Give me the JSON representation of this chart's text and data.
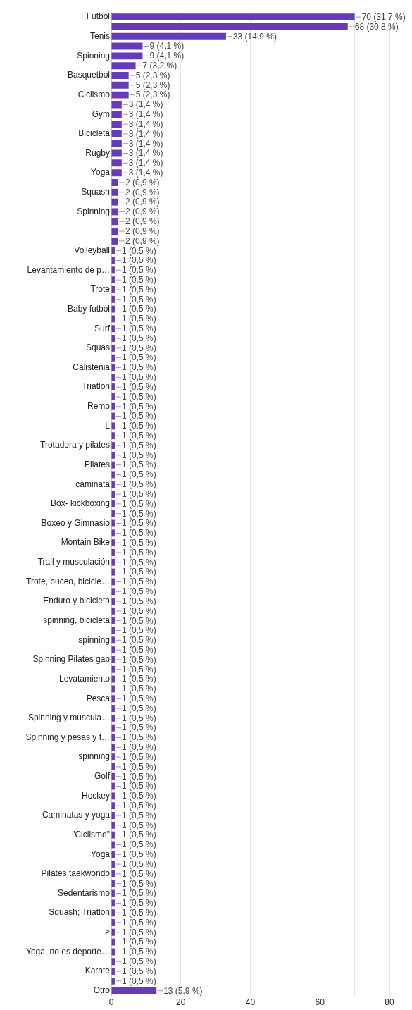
{
  "chart_data": {
    "type": "bar",
    "orientation": "horizontal",
    "categories": [
      "Futbol",
      null,
      "Tenis",
      null,
      "Spinning",
      null,
      "Basquetbol",
      null,
      "Ciclismo",
      null,
      "Gym",
      null,
      "Bicicleta",
      null,
      "Rugby",
      null,
      "Yoga",
      null,
      "Squash",
      null,
      "Spinning",
      null,
      null,
      null,
      "Volleyball",
      null,
      "Levantamiento de p…",
      null,
      "Trote",
      null,
      "Baby futbol",
      null,
      "Surf",
      null,
      "Squas",
      null,
      "Calistenia",
      null,
      "Triatlon",
      null,
      "Remo",
      null,
      "L",
      null,
      "Trotadora y pilates",
      null,
      "Pilates",
      null,
      "caminata",
      null,
      "Box- kickboxing",
      null,
      "Boxeo y Gimnasio",
      null,
      "Montain Bike",
      null,
      "Trail y musculación",
      null,
      "Trote, buceo, bicicle…",
      null,
      "Enduro y bicicleta",
      null,
      "spinning, bicicleta",
      null,
      "spinning",
      null,
      "Spinning Pilates gap",
      null,
      "Levatamiento",
      null,
      "Pesca",
      null,
      "Spinning y muscula…",
      null,
      "Spinning y pesas y f…",
      null,
      "spinning",
      null,
      "Golf",
      null,
      "Hockey",
      null,
      "Caminatas y yoga",
      null,
      "\"Ciclismo\"",
      null,
      "Yoga",
      null,
      "Pilates taekwondo",
      null,
      "Sedentarismo",
      null,
      "Squash; Triatlon",
      null,
      ">",
      null,
      "Yoga, no es deporte…",
      null,
      "Karate",
      null,
      "Otro"
    ],
    "values": [
      70,
      68,
      33,
      9,
      9,
      7,
      5,
      5,
      5,
      3,
      3,
      3,
      3,
      3,
      3,
      3,
      3,
      2,
      2,
      2,
      2,
      2,
      2,
      2,
      1,
      1,
      1,
      1,
      1,
      1,
      1,
      1,
      1,
      1,
      1,
      1,
      1,
      1,
      1,
      1,
      1,
      1,
      1,
      1,
      1,
      1,
      1,
      1,
      1,
      1,
      1,
      1,
      1,
      1,
      1,
      1,
      1,
      1,
      1,
      1,
      1,
      1,
      1,
      1,
      1,
      1,
      1,
      1,
      1,
      1,
      1,
      1,
      1,
      1,
      1,
      1,
      1,
      1,
      1,
      1,
      1,
      1,
      1,
      1,
      1,
      1,
      1,
      1,
      1,
      1,
      1,
      1,
      1,
      1,
      1,
      1,
      1,
      1,
      1,
      1,
      13
    ],
    "value_labels": [
      "70 (31,7 %)",
      "68 (30,8 %)",
      "33 (14,9 %)",
      "9 (4,1 %)",
      "9 (4,1 %)",
      "7 (3,2 %)",
      "5 (2,3 %)",
      "5 (2,3 %)",
      "5 (2,3 %)",
      "3 (1,4 %)",
      "3 (1,4 %)",
      "3 (1,4 %)",
      "3 (1,4 %)",
      "3 (1,4 %)",
      "3 (1,4 %)",
      "3 (1,4 %)",
      "3 (1,4 %)",
      "2 (0,9 %)",
      "2 (0,9 %)",
      "2 (0,9 %)",
      "2 (0,9 %)",
      "2 (0,9 %)",
      "2 (0,9 %)",
      "2 (0,9 %)",
      "1 (0,5 %)",
      "1 (0,5 %)",
      "1 (0,5 %)",
      "1 (0,5 %)",
      "1 (0,5 %)",
      "1 (0,5 %)",
      "1 (0,5 %)",
      "1 (0,5 %)",
      "1 (0,5 %)",
      "1 (0,5 %)",
      "1 (0,5 %)",
      "1 (0,5 %)",
      "1 (0,5 %)",
      "1 (0,5 %)",
      "1 (0,5 %)",
      "1 (0,5 %)",
      "1 (0,5 %)",
      "1 (0,5 %)",
      "1 (0,5 %)",
      "1 (0,5 %)",
      "1 (0,5 %)",
      "1 (0,5 %)",
      "1 (0,5 %)",
      "1 (0,5 %)",
      "1 (0,5 %)",
      "1 (0,5 %)",
      "1 (0,5 %)",
      "1 (0,5 %)",
      "1 (0,5 %)",
      "1 (0,5 %)",
      "1 (0,5 %)",
      "1 (0,5 %)",
      "1 (0,5 %)",
      "1 (0,5 %)",
      "1 (0,5 %)",
      "1 (0,5 %)",
      "1 (0,5 %)",
      "1 (0,5 %)",
      "1 (0,5 %)",
      "1 (0,5 %)",
      "1 (0,5 %)",
      "1 (0,5 %)",
      "1 (0,5 %)",
      "1 (0,5 %)",
      "1 (0,5 %)",
      "1 (0,5 %)",
      "1 (0,5 %)",
      "1 (0,5 %)",
      "1 (0,5 %)",
      "1 (0,5 %)",
      "1 (0,5 %)",
      "1 (0,5 %)",
      "1 (0,5 %)",
      "1 (0,5 %)",
      "1 (0,5 %)",
      "1 (0,5 %)",
      "1 (0,5 %)",
      "1 (0,5 %)",
      "1 (0,5 %)",
      "1 (0,5 %)",
      "1 (0,5 %)",
      "1 (0,5 %)",
      "1 (0,5 %)",
      "1 (0,5 %)",
      "1 (0,5 %)",
      "1 (0,5 %)",
      "1 (0,5 %)",
      "1 (0,5 %)",
      "1 (0,5 %)",
      "1 (0,5 %)",
      "1 (0,5 %)",
      "1 (0,5 %)",
      "1 (0,5 %)",
      "1 (0,5 %)",
      "1 (0,5 %)",
      "1 (0,5 %)",
      "13 (5,9 %)"
    ],
    "color": "#673ab7",
    "xlim": [
      0,
      80
    ],
    "xticks": [
      0,
      {
        "value": 10,
        "label": null
      },
      20,
      {
        "value": 30,
        "label": null
      },
      40,
      {
        "value": 50,
        "label": null
      },
      60,
      {
        "value": 70,
        "label": null
      },
      80
    ],
    "grid": "x",
    "legend": false
  }
}
